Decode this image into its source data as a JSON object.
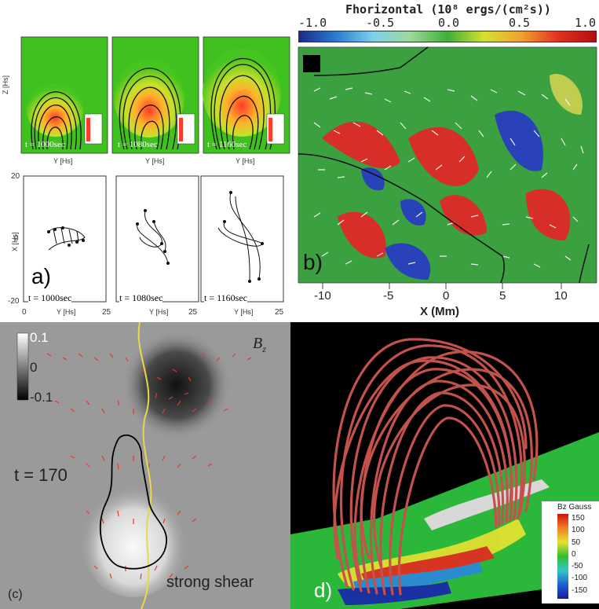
{
  "panel_a": {
    "label": "a)",
    "top_snapshots": [
      {
        "time": "t = 1000sec"
      },
      {
        "time": "t = 1080sec"
      },
      {
        "time": "t = 1160sec"
      }
    ],
    "bottom_snapshots": [
      {
        "time": "t = 1000sec"
      },
      {
        "time": "t = 1080sec"
      },
      {
        "time": "t = 1160sec"
      }
    ],
    "top_ylabel": "Z [Hs]",
    "top_xlabel": "Y [Hs]",
    "bottom_ylabel": "X [Hs]",
    "bottom_xlabel": "Y [Hs]",
    "bottom_y_ticks": [
      "20",
      "0",
      "-20"
    ],
    "bottom_x_ticks": [
      "0",
      "25"
    ]
  },
  "panel_b": {
    "label": "b)",
    "colorbar_title": "Fhorizontal (10⁸ ergs/(cm²s))",
    "colorbar_ticks": [
      "-1.0",
      "-0.5",
      "0.0",
      "0.5",
      "1.0"
    ],
    "x_ticks": [
      "-10",
      "-5",
      "0",
      "5",
      "10"
    ],
    "xlabel": "X (Mm)"
  },
  "panel_c": {
    "label": "(c)",
    "field_label": "B",
    "field_subscript": "z",
    "colorbar_ticks": [
      "0.1",
      "0",
      "-0.1"
    ],
    "time": "t = 170",
    "annotation": "strong shear"
  },
  "panel_d": {
    "label": "d)",
    "colorbar_title": "Bz Gauss",
    "colorbar_ticks": [
      "150",
      "100",
      "50",
      "0",
      "-50",
      "-100",
      "-150"
    ]
  },
  "colors": {
    "green_bg": "#3fc21f",
    "field_line_red": "#c4524c",
    "arrow_red": "#e23a2a",
    "shear_line": "#e8d84a"
  }
}
